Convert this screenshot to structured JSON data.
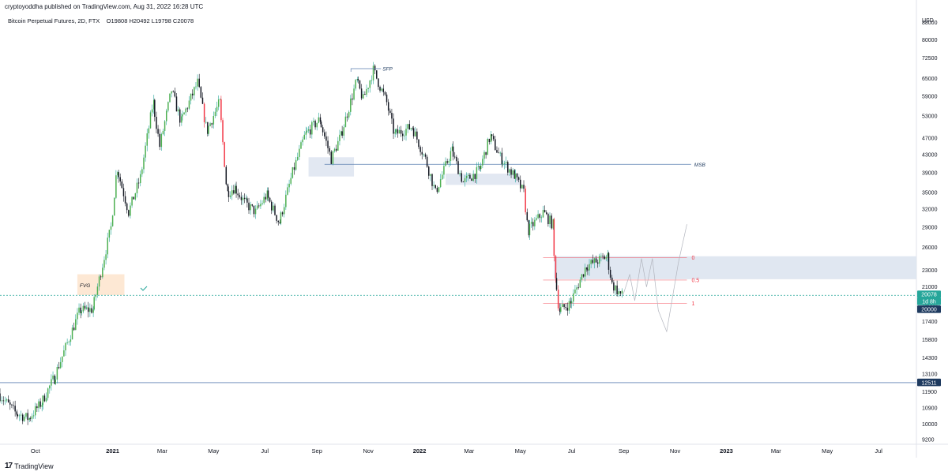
{
  "header": {
    "publish_line": "cryptoyoddha published on TradingView.com, Aug 31, 2022 16:28 UTC"
  },
  "symbol": {
    "name": "Bitcoin Perpetual Futures, 2D, FTX",
    "ohlc": "O19808  H20492  L19798  C20078"
  },
  "footer": {
    "brand": "TradingView",
    "logo_glyph": "17"
  },
  "colors": {
    "up": "#26a69a",
    "down": "#131722",
    "up_body": "#4caf50",
    "accent_blue": "#2962ff",
    "zone": "#dde4f0",
    "fvg": "#fde8d4"
  },
  "chart_data": {
    "type": "candlestick",
    "currency": "USD",
    "y_scale": "log",
    "ylim": [
      9000,
      92000
    ],
    "xlim": [
      "2020-08-20",
      "2023-08-15"
    ],
    "y_ticks": [
      88000,
      80000,
      72500,
      65000,
      59000,
      53000,
      47000,
      43000,
      39000,
      35000,
      32000,
      29000,
      26000,
      23000,
      21000,
      19000,
      17400,
      15800,
      14300,
      13100,
      11900,
      10900,
      10000,
      9200
    ],
    "x_ticks": [
      {
        "date": "2020-10-01",
        "label": "Oct",
        "bold": false
      },
      {
        "date": "2021-01-01",
        "label": "2021",
        "bold": true
      },
      {
        "date": "2021-03-01",
        "label": "Mar",
        "bold": false
      },
      {
        "date": "2021-05-01",
        "label": "May",
        "bold": false
      },
      {
        "date": "2021-07-01",
        "label": "Jul",
        "bold": false
      },
      {
        "date": "2021-09-01",
        "label": "Sep",
        "bold": false
      },
      {
        "date": "2021-11-01",
        "label": "Nov",
        "bold": false
      },
      {
        "date": "2022-01-01",
        "label": "2022",
        "bold": true
      },
      {
        "date": "2022-03-01",
        "label": "Mar",
        "bold": false
      },
      {
        "date": "2022-05-01",
        "label": "May",
        "bold": false
      },
      {
        "date": "2022-07-01",
        "label": "Jul",
        "bold": false
      },
      {
        "date": "2022-09-01",
        "label": "Sep",
        "bold": false
      },
      {
        "date": "2022-11-01",
        "label": "Nov",
        "bold": false
      },
      {
        "date": "2023-01-01",
        "label": "2023",
        "bold": true
      },
      {
        "date": "2023-03-01",
        "label": "Mar",
        "bold": false
      },
      {
        "date": "2023-05-01",
        "label": "May",
        "bold": false
      },
      {
        "date": "2023-07-01",
        "label": "Jul",
        "bold": false
      }
    ],
    "price_path": [
      [
        "2020-08-20",
        11800
      ],
      [
        "2020-09-10",
        10600
      ],
      [
        "2020-09-25",
        10300
      ],
      [
        "2020-10-10",
        11200
      ],
      [
        "2020-10-25",
        12800
      ],
      [
        "2020-11-10",
        15500
      ],
      [
        "2020-11-25",
        18500
      ],
      [
        "2020-12-10",
        18600
      ],
      [
        "2020-12-20",
        22800
      ],
      [
        "2021-01-01",
        29000
      ],
      [
        "2021-01-08",
        40000
      ],
      [
        "2021-01-22",
        31500
      ],
      [
        "2021-02-05",
        38000
      ],
      [
        "2021-02-20",
        57000
      ],
      [
        "2021-02-28",
        45000
      ],
      [
        "2021-03-14",
        61000
      ],
      [
        "2021-03-25",
        51500
      ],
      [
        "2021-04-14",
        63500
      ],
      [
        "2021-04-25",
        49000
      ],
      [
        "2021-05-10",
        57000
      ],
      [
        "2021-05-19",
        35000
      ],
      [
        "2021-05-28",
        36000
      ],
      [
        "2021-06-10",
        33000
      ],
      [
        "2021-06-22",
        31500
      ],
      [
        "2021-07-05",
        34500
      ],
      [
        "2021-07-20",
        29800
      ],
      [
        "2021-08-05",
        39000
      ],
      [
        "2021-08-20",
        48000
      ],
      [
        "2021-09-06",
        52000
      ],
      [
        "2021-09-20",
        42000
      ],
      [
        "2021-10-01",
        47500
      ],
      [
        "2021-10-20",
        64000
      ],
      [
        "2021-10-28",
        58000
      ],
      [
        "2021-11-09",
        68000
      ],
      [
        "2021-11-25",
        57000
      ],
      [
        "2021-12-04",
        48000
      ],
      [
        "2021-12-25",
        50000
      ],
      [
        "2022-01-10",
        42000
      ],
      [
        "2022-01-22",
        35000
      ],
      [
        "2022-02-10",
        44000
      ],
      [
        "2022-02-24",
        37000
      ],
      [
        "2022-03-15",
        39500
      ],
      [
        "2022-03-28",
        47500
      ],
      [
        "2022-04-10",
        42000
      ],
      [
        "2022-04-25",
        38500
      ],
      [
        "2022-05-07",
        35000
      ],
      [
        "2022-05-12",
        28500
      ],
      [
        "2022-05-30",
        31500
      ],
      [
        "2022-06-10",
        29500
      ],
      [
        "2022-06-13",
        22500
      ],
      [
        "2022-06-18",
        18500
      ],
      [
        "2022-07-01",
        19200
      ],
      [
        "2022-07-20",
        23500
      ],
      [
        "2022-08-14",
        24800
      ],
      [
        "2022-08-20",
        21300
      ],
      [
        "2022-08-31",
        20078
      ]
    ],
    "zones": [
      {
        "type": "supply",
        "x0": "2022-06-10",
        "x1": "2023-08-15",
        "y0": 21900,
        "y1": 24800
      },
      {
        "type": "box",
        "x0": "2021-08-22",
        "x1": "2021-10-15",
        "y0": 38200,
        "y1": 42400
      },
      {
        "type": "box",
        "x0": "2022-02-01",
        "x1": "2022-04-30",
        "y0": 36500,
        "y1": 38800
      }
    ],
    "fvg": {
      "label": "FVG",
      "x0": "2020-11-20",
      "x1": "2021-01-15",
      "y0": 20100,
      "y1": 22500
    },
    "horizontal_lines": [
      {
        "price": 12511,
        "label": "12511",
        "style": "solid"
      },
      {
        "price": 40800,
        "label": "MSB",
        "style": "solid",
        "x0": "2021-09-10",
        "x1": "2022-11-20"
      },
      {
        "price": 20078,
        "label": "20078",
        "style": "dotted"
      }
    ],
    "fib": [
      {
        "level": "0",
        "price": 24600
      },
      {
        "level": "0.5",
        "price": 21800
      },
      {
        "level": "1",
        "price": 19200
      }
    ],
    "annotations": [
      {
        "text": "SFP",
        "date": "2021-11-18",
        "price": 68500
      }
    ],
    "price_labels": [
      {
        "text": "20078",
        "bg": "#26a69a"
      },
      {
        "text": "1d 8h",
        "bg": "#26a69a"
      },
      {
        "text": "20000",
        "bg": "#1e3a5f"
      },
      {
        "text": "12511",
        "bg": "#1e3a5f"
      }
    ],
    "projection": [
      [
        "2022-08-31",
        20078
      ],
      [
        "2022-09-08",
        22500
      ],
      [
        "2022-09-14",
        19500
      ],
      [
        "2022-09-22",
        24500
      ],
      [
        "2022-09-28",
        21000
      ],
      [
        "2022-10-05",
        24500
      ],
      [
        "2022-10-12",
        18500
      ],
      [
        "2022-10-22",
        16500
      ],
      [
        "2022-11-05",
        24000
      ],
      [
        "2022-11-15",
        29500
      ]
    ]
  }
}
